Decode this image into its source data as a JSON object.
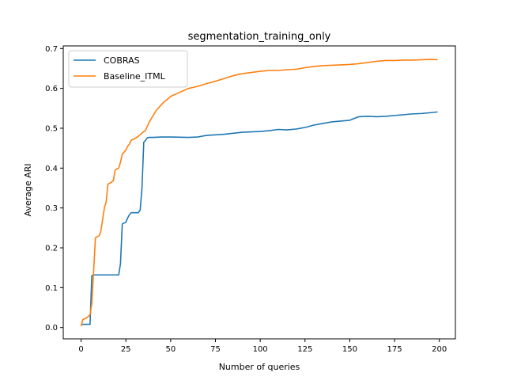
{
  "chart_data": {
    "type": "line",
    "title": "segmentation_training_only",
    "xlabel": "Number of queries",
    "ylabel": "Average ARI",
    "xlim": [
      -9.95,
      208.95
    ],
    "ylim": [
      -0.0284,
      0.7066
    ],
    "xticks": [
      0,
      25,
      50,
      75,
      100,
      125,
      150,
      175,
      200
    ],
    "yticks": [
      0.0,
      0.1,
      0.2,
      0.3,
      0.4,
      0.5,
      0.6,
      0.7
    ],
    "xtick_labels": [
      "0",
      "25",
      "50",
      "75",
      "100",
      "125",
      "150",
      "175",
      "200"
    ],
    "ytick_labels": [
      "0.0",
      "0.1",
      "0.2",
      "0.3",
      "0.4",
      "0.5",
      "0.6",
      "0.7"
    ],
    "grid": false,
    "legend_position": "top-left",
    "series": [
      {
        "name": "COBRAS",
        "color": "#1f77b4",
        "x": [
          0,
          1,
          5,
          6,
          7,
          8,
          10,
          20,
          21,
          22,
          23,
          24,
          25,
          26,
          27,
          28,
          29,
          30,
          31,
          32,
          33,
          34,
          35,
          36,
          37,
          38,
          40,
          45,
          50,
          60,
          65,
          70,
          80,
          90,
          100,
          105,
          110,
          115,
          120,
          125,
          130,
          135,
          140,
          145,
          150,
          155,
          160,
          165,
          170,
          175,
          180,
          185,
          190,
          195,
          199
        ],
        "y": [
          0.008,
          0.008,
          0.008,
          0.13,
          0.132,
          0.132,
          0.132,
          0.132,
          0.132,
          0.16,
          0.26,
          0.262,
          0.264,
          0.275,
          0.283,
          0.288,
          0.288,
          0.288,
          0.288,
          0.288,
          0.295,
          0.35,
          0.465,
          0.47,
          0.476,
          0.477,
          0.477,
          0.478,
          0.478,
          0.477,
          0.478,
          0.482,
          0.485,
          0.49,
          0.492,
          0.494,
          0.497,
          0.496,
          0.498,
          0.502,
          0.508,
          0.512,
          0.516,
          0.518,
          0.52,
          0.529,
          0.53,
          0.529,
          0.53,
          0.532,
          0.534,
          0.536,
          0.537,
          0.539,
          0.541
        ]
      },
      {
        "name": "Baseline_ITML",
        "color": "#ff7f0e",
        "x": [
          0,
          1,
          2,
          3,
          4,
          5,
          6,
          7,
          8,
          9,
          10,
          11,
          12,
          13,
          14,
          15,
          16,
          17,
          18,
          19,
          20,
          21,
          22,
          23,
          24,
          25,
          26,
          27,
          28,
          29,
          30,
          32,
          34,
          36,
          38,
          40,
          42,
          44,
          46,
          48,
          50,
          55,
          60,
          65,
          70,
          75,
          80,
          85,
          90,
          95,
          100,
          105,
          110,
          115,
          120,
          125,
          130,
          135,
          140,
          145,
          150,
          155,
          160,
          165,
          170,
          175,
          180,
          185,
          190,
          195,
          199
        ],
        "y": [
          0.003,
          0.02,
          0.022,
          0.024,
          0.028,
          0.032,
          0.06,
          0.14,
          0.225,
          0.228,
          0.23,
          0.24,
          0.27,
          0.3,
          0.315,
          0.36,
          0.362,
          0.365,
          0.368,
          0.395,
          0.398,
          0.4,
          0.415,
          0.435,
          0.44,
          0.445,
          0.455,
          0.46,
          0.47,
          0.472,
          0.474,
          0.48,
          0.488,
          0.495,
          0.515,
          0.53,
          0.545,
          0.555,
          0.565,
          0.572,
          0.58,
          0.59,
          0.6,
          0.605,
          0.612,
          0.618,
          0.625,
          0.632,
          0.637,
          0.64,
          0.643,
          0.645,
          0.645,
          0.647,
          0.648,
          0.652,
          0.655,
          0.657,
          0.658,
          0.659,
          0.66,
          0.662,
          0.665,
          0.668,
          0.67,
          0.67,
          0.671,
          0.671,
          0.672,
          0.673,
          0.672
        ]
      }
    ]
  }
}
